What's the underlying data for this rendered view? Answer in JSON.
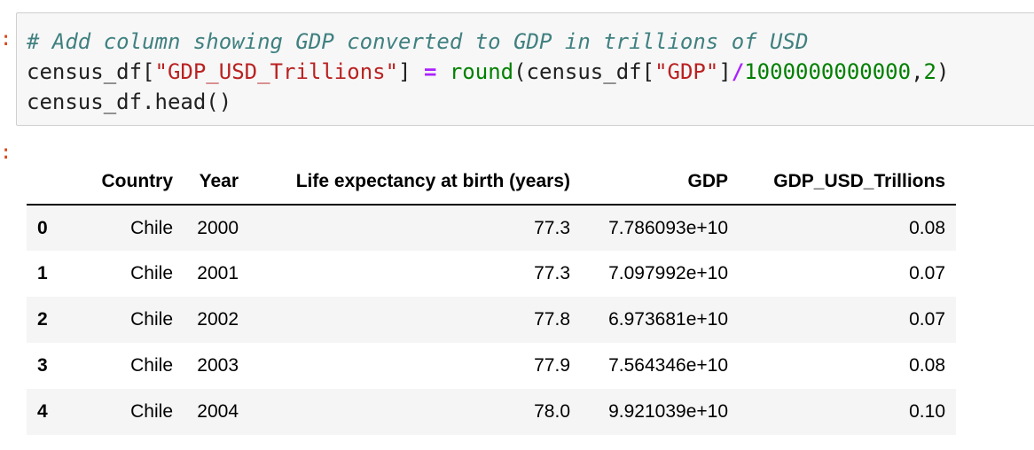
{
  "cell": {
    "code_lines": [
      [
        {
          "type": "comment",
          "text": "# Add column showing GDP converted to GDP in trillions of USD"
        }
      ],
      [
        {
          "type": "plain",
          "text": "census_df["
        },
        {
          "type": "str",
          "text": "\"GDP_USD_Trillions\""
        },
        {
          "type": "plain",
          "text": "] "
        },
        {
          "type": "op",
          "text": "="
        },
        {
          "type": "plain",
          "text": " "
        },
        {
          "type": "builtin",
          "text": "round"
        },
        {
          "type": "plain",
          "text": "(census_df["
        },
        {
          "type": "str",
          "text": "\"GDP\""
        },
        {
          "type": "plain",
          "text": "]"
        },
        {
          "type": "op",
          "text": "/"
        },
        {
          "type": "num",
          "text": "1000000000000"
        },
        {
          "type": "plain",
          "text": ","
        },
        {
          "type": "num",
          "text": "2"
        },
        {
          "type": "plain",
          "text": ")"
        }
      ],
      [
        {
          "type": "plain",
          "text": "census_df.head()"
        }
      ]
    ]
  },
  "output": {
    "table": {
      "columns": [
        "",
        "Country",
        "Year",
        "Life expectancy at birth (years)",
        "GDP",
        "GDP_USD_Trillions"
      ],
      "rows": [
        {
          "index": "0",
          "Country": "Chile",
          "Year": "2000",
          "Life": "77.3",
          "GDP": "7.786093e+10",
          "Trillions": "0.08"
        },
        {
          "index": "1",
          "Country": "Chile",
          "Year": "2001",
          "Life": "77.3",
          "GDP": "7.097992e+10",
          "Trillions": "0.07"
        },
        {
          "index": "2",
          "Country": "Chile",
          "Year": "2002",
          "Life": "77.8",
          "GDP": "6.973681e+10",
          "Trillions": "0.07"
        },
        {
          "index": "3",
          "Country": "Chile",
          "Year": "2003",
          "Life": "77.9",
          "GDP": "7.564346e+10",
          "Trillions": "0.08"
        },
        {
          "index": "4",
          "Country": "Chile",
          "Year": "2004",
          "Life": "78.0",
          "GDP": "9.921039e+10",
          "Trillions": "0.10"
        }
      ]
    }
  },
  "colors": {
    "prompt": "#d84315",
    "cell_background": "#f7f7f7",
    "comment": "#408080",
    "string": "#ba2121",
    "operator": "#aa22ff",
    "builtin": "#008000",
    "stripe": "#f5f5f5"
  }
}
